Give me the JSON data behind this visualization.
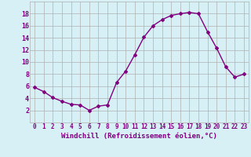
{
  "x": [
    0,
    1,
    2,
    3,
    4,
    5,
    6,
    7,
    8,
    9,
    10,
    11,
    12,
    13,
    14,
    15,
    16,
    17,
    18,
    19,
    20,
    21,
    22,
    23
  ],
  "y": [
    5.8,
    5.1,
    4.1,
    3.5,
    3.0,
    2.9,
    2.0,
    2.7,
    2.9,
    6.6,
    8.5,
    11.2,
    14.1,
    16.0,
    17.0,
    17.7,
    18.0,
    18.2,
    18.0,
    15.0,
    12.3,
    9.2,
    7.5,
    8.0
  ],
  "line_color": "#800080",
  "marker": "D",
  "marker_size": 2.0,
  "line_width": 1.0,
  "bg_color": "#d6f0f5",
  "grid_color": "#b0b0b0",
  "xlabel": "Windchill (Refroidissement éolien,°C)",
  "xlabel_fontsize": 6.5,
  "xtick_fontsize": 5.5,
  "ytick_fontsize": 6.0,
  "ylim": [
    0,
    20
  ],
  "xlim": [
    -0.5,
    23.5
  ],
  "yticks": [
    2,
    4,
    6,
    8,
    10,
    12,
    14,
    16,
    18
  ],
  "xticks": [
    0,
    1,
    2,
    3,
    4,
    5,
    6,
    7,
    8,
    9,
    10,
    11,
    12,
    13,
    14,
    15,
    16,
    17,
    18,
    19,
    20,
    21,
    22,
    23
  ]
}
